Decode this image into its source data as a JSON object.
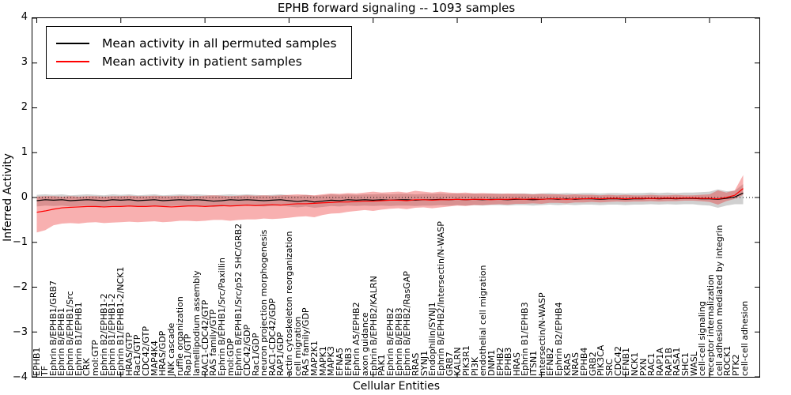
{
  "title": "EPHB forward signaling -- 1093 samples",
  "legend": [
    {
      "label": "Mean activity in all permuted samples",
      "color": "#000000"
    },
    {
      "label": "Mean activity in patient samples",
      "color": "#ff0000"
    }
  ],
  "chart_data": {
    "type": "line",
    "title": "EPHB forward signaling -- 1093 samples",
    "xlabel": "Cellular Entities",
    "ylabel": "Inferred Activity",
    "ylim": [
      -4,
      4
    ],
    "yticks": [
      4,
      3,
      2,
      1,
      0,
      -1,
      -2,
      -3,
      -4
    ],
    "grid": false,
    "zero_line_style": "dotted",
    "legend_position": "upper left",
    "categories": [
      "EPHB1",
      "TF",
      "Ephrin B/EPHB1/GRB7",
      "Ephrin B/EPHB1",
      "Ephrin B/EPHB1/Src",
      "Ephrin B1/EPHB1",
      "CRK",
      "mol:GTP",
      "Ephrin B2/EPHB1-2",
      "Ephrin B1/EPHB1-2",
      "Ephrin B1/EPHB1-2/NCK1",
      "HRAS/GTP",
      "Rac1/GTP",
      "CDC42/GTP",
      "MAP4K4",
      "HRAS/GDP",
      "JNK cascade",
      "ruffle organization",
      "Rap1/GTP",
      "lamellipodium assembly",
      "RAC1-CDC42/GTP",
      "RAS family/GTP",
      "Ephrin B/EPHB1/Src/Paxillin",
      "mol:GDP",
      "Ephrin B/EPHB1/Src/p52 SHC/GRB2",
      "CDC42/GDP",
      "Rac1/GDP",
      "neuron projection morphogenesis",
      "RAC1-CDC42/GDP",
      "RAP1/GDP",
      "actin cytoskeleton reorganization",
      "cell migration",
      "RAS family/GDP",
      "MAP2K1",
      "MAPK1",
      "MAPK3",
      "EFNA5",
      "EFNB3",
      "Ephrin A5/EPHB2",
      "axon guidance",
      "Ephrin B/EPHB2/KALRN",
      "PAK1",
      "Ephrin B/EPHB2",
      "Ephrin B/EPHB3",
      "Ephrin B/EPHB2/RasGAP",
      "RRAS",
      "SYNJ1",
      "Endophilin/SYNJ1",
      "Ephrin B/EPHB2/Intersectin/N-WASP",
      "GRB7",
      "KALRN",
      "PIK3R1",
      "PI3K",
      "endothelial cell migration",
      "DNM1",
      "EPHB2",
      "EPHB3",
      "HRAS",
      "Ephrin B1/EPHB3",
      "ITSN1",
      "Intersectin/N-WASP",
      "EFNB2",
      "Ephrin B2/EPHB4",
      "KRAS",
      "NRAS",
      "EPHB4",
      "GRB2",
      "PIK3CA",
      "SRC",
      "CDC42",
      "EFNB1",
      "NCK1",
      "PXN",
      "RAC1",
      "RAP1A",
      "RAP1B",
      "RASA1",
      "SHC1",
      "WASL",
      "cell-cell signaling",
      "receptor internalization",
      "cell adhesion mediated by integrin",
      "ROCK1",
      "PTK2",
      "cell-cell adhesion"
    ],
    "series": [
      {
        "name": "Mean activity in all permuted samples",
        "color": "#000000",
        "band_color": "rgba(120,120,120,0.35)",
        "values": [
          -0.07,
          -0.05,
          -0.06,
          -0.05,
          -0.07,
          -0.06,
          -0.05,
          -0.06,
          -0.07,
          -0.05,
          -0.06,
          -0.05,
          -0.07,
          -0.06,
          -0.05,
          -0.07,
          -0.06,
          -0.05,
          -0.06,
          -0.05,
          -0.06,
          -0.08,
          -0.07,
          -0.05,
          -0.06,
          -0.05,
          -0.06,
          -0.07,
          -0.06,
          -0.05,
          -0.07,
          -0.09,
          -0.07,
          -0.1,
          -0.08,
          -0.06,
          -0.07,
          -0.05,
          -0.06,
          -0.05,
          -0.06,
          -0.05,
          -0.06,
          -0.05,
          -0.05,
          -0.06,
          -0.05,
          -0.05,
          -0.04,
          -0.05,
          -0.04,
          -0.05,
          -0.04,
          -0.05,
          -0.04,
          -0.04,
          -0.05,
          -0.04,
          -0.04,
          -0.05,
          -0.04,
          -0.03,
          -0.04,
          -0.03,
          -0.04,
          -0.03,
          -0.03,
          -0.04,
          -0.03,
          -0.03,
          -0.04,
          -0.03,
          -0.03,
          -0.02,
          -0.03,
          -0.02,
          -0.03,
          -0.02,
          -0.02,
          -0.03,
          -0.03,
          -0.04,
          -0.02,
          0.01,
          0.1
        ],
        "band_lo": [
          -0.2,
          -0.18,
          -0.19,
          -0.18,
          -0.2,
          -0.19,
          -0.18,
          -0.19,
          -0.2,
          -0.18,
          -0.19,
          -0.18,
          -0.2,
          -0.19,
          -0.18,
          -0.2,
          -0.19,
          -0.18,
          -0.19,
          -0.18,
          -0.19,
          -0.21,
          -0.2,
          -0.18,
          -0.19,
          -0.18,
          -0.19,
          -0.2,
          -0.19,
          -0.18,
          -0.2,
          -0.22,
          -0.2,
          -0.23,
          -0.21,
          -0.19,
          -0.2,
          -0.18,
          -0.19,
          -0.18,
          -0.19,
          -0.18,
          -0.19,
          -0.18,
          -0.18,
          -0.19,
          -0.18,
          -0.18,
          -0.17,
          -0.18,
          -0.17,
          -0.18,
          -0.17,
          -0.18,
          -0.17,
          -0.17,
          -0.18,
          -0.17,
          -0.17,
          -0.18,
          -0.17,
          -0.16,
          -0.17,
          -0.16,
          -0.17,
          -0.16,
          -0.16,
          -0.17,
          -0.16,
          -0.16,
          -0.17,
          -0.16,
          -0.16,
          -0.15,
          -0.16,
          -0.15,
          -0.16,
          -0.15,
          -0.15,
          -0.17,
          -0.18,
          -0.23,
          -0.18,
          -0.15,
          -0.15
        ],
        "band_hi": [
          0.06,
          0.07,
          0.06,
          0.07,
          0.05,
          0.06,
          0.07,
          0.06,
          0.05,
          0.07,
          0.06,
          0.07,
          0.05,
          0.06,
          0.07,
          0.05,
          0.06,
          0.07,
          0.06,
          0.07,
          0.06,
          0.05,
          0.06,
          0.07,
          0.06,
          0.07,
          0.06,
          0.05,
          0.06,
          0.07,
          0.05,
          0.04,
          0.06,
          0.04,
          0.05,
          0.07,
          0.06,
          0.07,
          0.06,
          0.07,
          0.07,
          0.08,
          0.07,
          0.08,
          0.08,
          0.07,
          0.08,
          0.08,
          0.09,
          0.08,
          0.09,
          0.08,
          0.09,
          0.08,
          0.09,
          0.09,
          0.08,
          0.09,
          0.09,
          0.08,
          0.09,
          0.1,
          0.09,
          0.1,
          0.09,
          0.1,
          0.1,
          0.09,
          0.1,
          0.1,
          0.09,
          0.1,
          0.1,
          0.11,
          0.1,
          0.11,
          0.1,
          0.11,
          0.11,
          0.12,
          0.13,
          0.18,
          0.14,
          0.15,
          0.3
        ]
      },
      {
        "name": "Mean activity in patient samples",
        "color": "#ff0000",
        "band_color": "rgba(235,30,30,0.35)",
        "values": [
          -0.33,
          -0.3,
          -0.26,
          -0.23,
          -0.22,
          -0.21,
          -0.2,
          -0.2,
          -0.21,
          -0.2,
          -0.2,
          -0.19,
          -0.2,
          -0.2,
          -0.19,
          -0.2,
          -0.21,
          -0.2,
          -0.19,
          -0.19,
          -0.2,
          -0.19,
          -0.18,
          -0.19,
          -0.18,
          -0.17,
          -0.18,
          -0.17,
          -0.16,
          -0.17,
          -0.15,
          -0.14,
          -0.14,
          -0.13,
          -0.12,
          -0.11,
          -0.1,
          -0.1,
          -0.09,
          -0.08,
          -0.08,
          -0.07,
          -0.06,
          -0.06,
          -0.07,
          -0.05,
          -0.05,
          -0.06,
          -0.05,
          -0.05,
          -0.04,
          -0.05,
          -0.04,
          -0.04,
          -0.05,
          -0.04,
          -0.04,
          -0.03,
          -0.04,
          -0.03,
          -0.04,
          -0.03,
          -0.03,
          -0.04,
          -0.03,
          -0.03,
          -0.02,
          -0.03,
          -0.02,
          -0.02,
          -0.03,
          -0.02,
          -0.02,
          -0.02,
          -0.02,
          -0.01,
          -0.02,
          -0.01,
          -0.01,
          -0.02,
          -0.02,
          -0.03,
          0.0,
          0.05,
          0.2
        ],
        "band_lo": [
          -0.78,
          -0.73,
          -0.62,
          -0.58,
          -0.57,
          -0.58,
          -0.56,
          -0.55,
          -0.57,
          -0.56,
          -0.55,
          -0.54,
          -0.55,
          -0.54,
          -0.53,
          -0.55,
          -0.54,
          -0.52,
          -0.52,
          -0.53,
          -0.52,
          -0.5,
          -0.5,
          -0.52,
          -0.5,
          -0.49,
          -0.49,
          -0.47,
          -0.48,
          -0.47,
          -0.45,
          -0.43,
          -0.42,
          -0.44,
          -0.39,
          -0.36,
          -0.35,
          -0.32,
          -0.3,
          -0.28,
          -0.3,
          -0.27,
          -0.25,
          -0.24,
          -0.26,
          -0.23,
          -0.22,
          -0.24,
          -0.22,
          -0.2,
          -0.18,
          -0.19,
          -0.17,
          -0.17,
          -0.16,
          -0.15,
          -0.16,
          -0.14,
          -0.14,
          -0.13,
          -0.14,
          -0.12,
          -0.12,
          -0.13,
          -0.11,
          -0.11,
          -0.1,
          -0.11,
          -0.1,
          -0.09,
          -0.1,
          -0.09,
          -0.09,
          -0.08,
          -0.09,
          -0.08,
          -0.08,
          -0.07,
          -0.07,
          -0.08,
          -0.1,
          -0.16,
          -0.08,
          -0.03,
          0.06
        ],
        "band_hi": [
          0.02,
          0.03,
          0.03,
          0.02,
          0.03,
          0.02,
          0.03,
          0.03,
          0.02,
          0.03,
          0.03,
          0.04,
          0.03,
          0.03,
          0.04,
          0.03,
          0.03,
          0.04,
          0.04,
          0.03,
          0.04,
          0.05,
          0.04,
          0.03,
          0.04,
          0.05,
          0.04,
          0.05,
          0.04,
          0.05,
          0.06,
          0.07,
          0.06,
          0.05,
          0.07,
          0.09,
          0.08,
          0.1,
          0.09,
          0.11,
          0.13,
          0.11,
          0.12,
          0.13,
          0.11,
          0.15,
          0.13,
          0.11,
          0.13,
          0.11,
          0.1,
          0.11,
          0.09,
          0.1,
          0.09,
          0.08,
          0.09,
          0.08,
          0.08,
          0.07,
          0.08,
          0.07,
          0.07,
          0.06,
          0.07,
          0.06,
          0.06,
          0.05,
          0.06,
          0.05,
          0.06,
          0.05,
          0.05,
          0.06,
          0.05,
          0.05,
          0.06,
          0.05,
          0.05,
          0.06,
          0.07,
          0.16,
          0.11,
          0.16,
          0.5
        ]
      }
    ]
  }
}
